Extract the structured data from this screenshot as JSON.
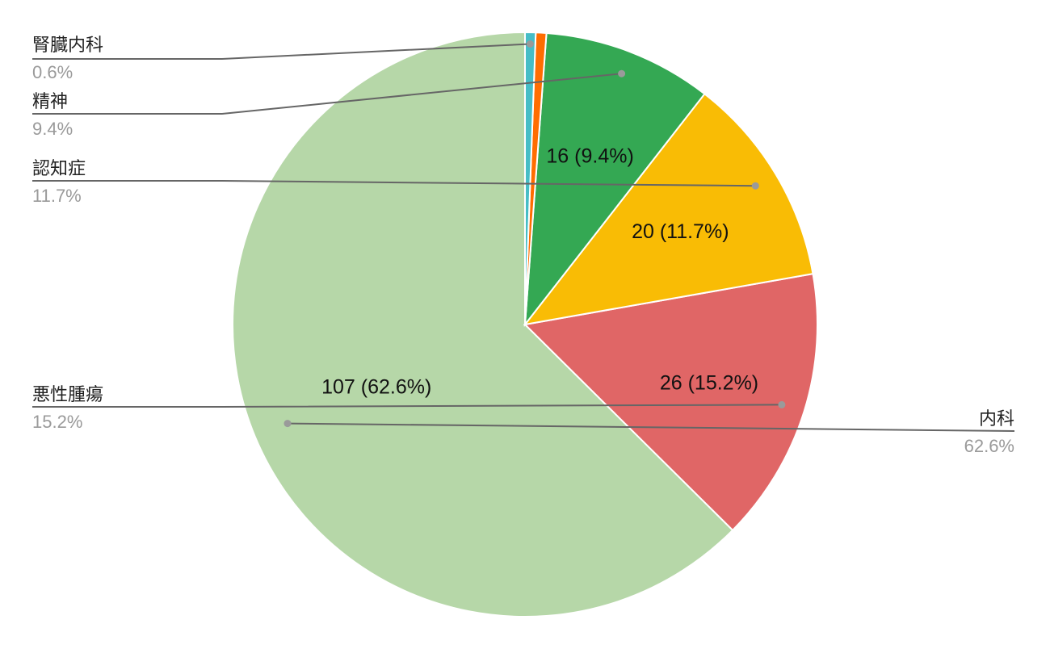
{
  "chart_data": {
    "type": "pie",
    "title": "",
    "slices": [
      {
        "name": "内科",
        "value": 107,
        "percent_label": "62.6%",
        "slice_label": "107 (62.6%)",
        "color": "#b6d7a8"
      },
      {
        "name": "悪性腫瘍",
        "value": 26,
        "percent_label": "15.2%",
        "slice_label": "26 (15.2%)",
        "color": "#e06666"
      },
      {
        "name": "認知症",
        "value": 20,
        "percent_label": "11.7%",
        "slice_label": "20 (11.7%)",
        "color": "#f9bc05"
      },
      {
        "name": "精神",
        "value": 16,
        "percent_label": "9.4%",
        "slice_label": "16 (9.4%)",
        "color": "#34a853"
      },
      {
        "name": "",
        "value": 1,
        "percent_label": "",
        "slice_label": "",
        "color": "#ff6d01"
      },
      {
        "name": "腎臓内科",
        "value": 1,
        "percent_label": "0.6%",
        "slice_label": "",
        "color": "#46bdc6"
      }
    ],
    "start": "12 o'clock",
    "direction": "counterclockwise",
    "legend": "callouts"
  }
}
